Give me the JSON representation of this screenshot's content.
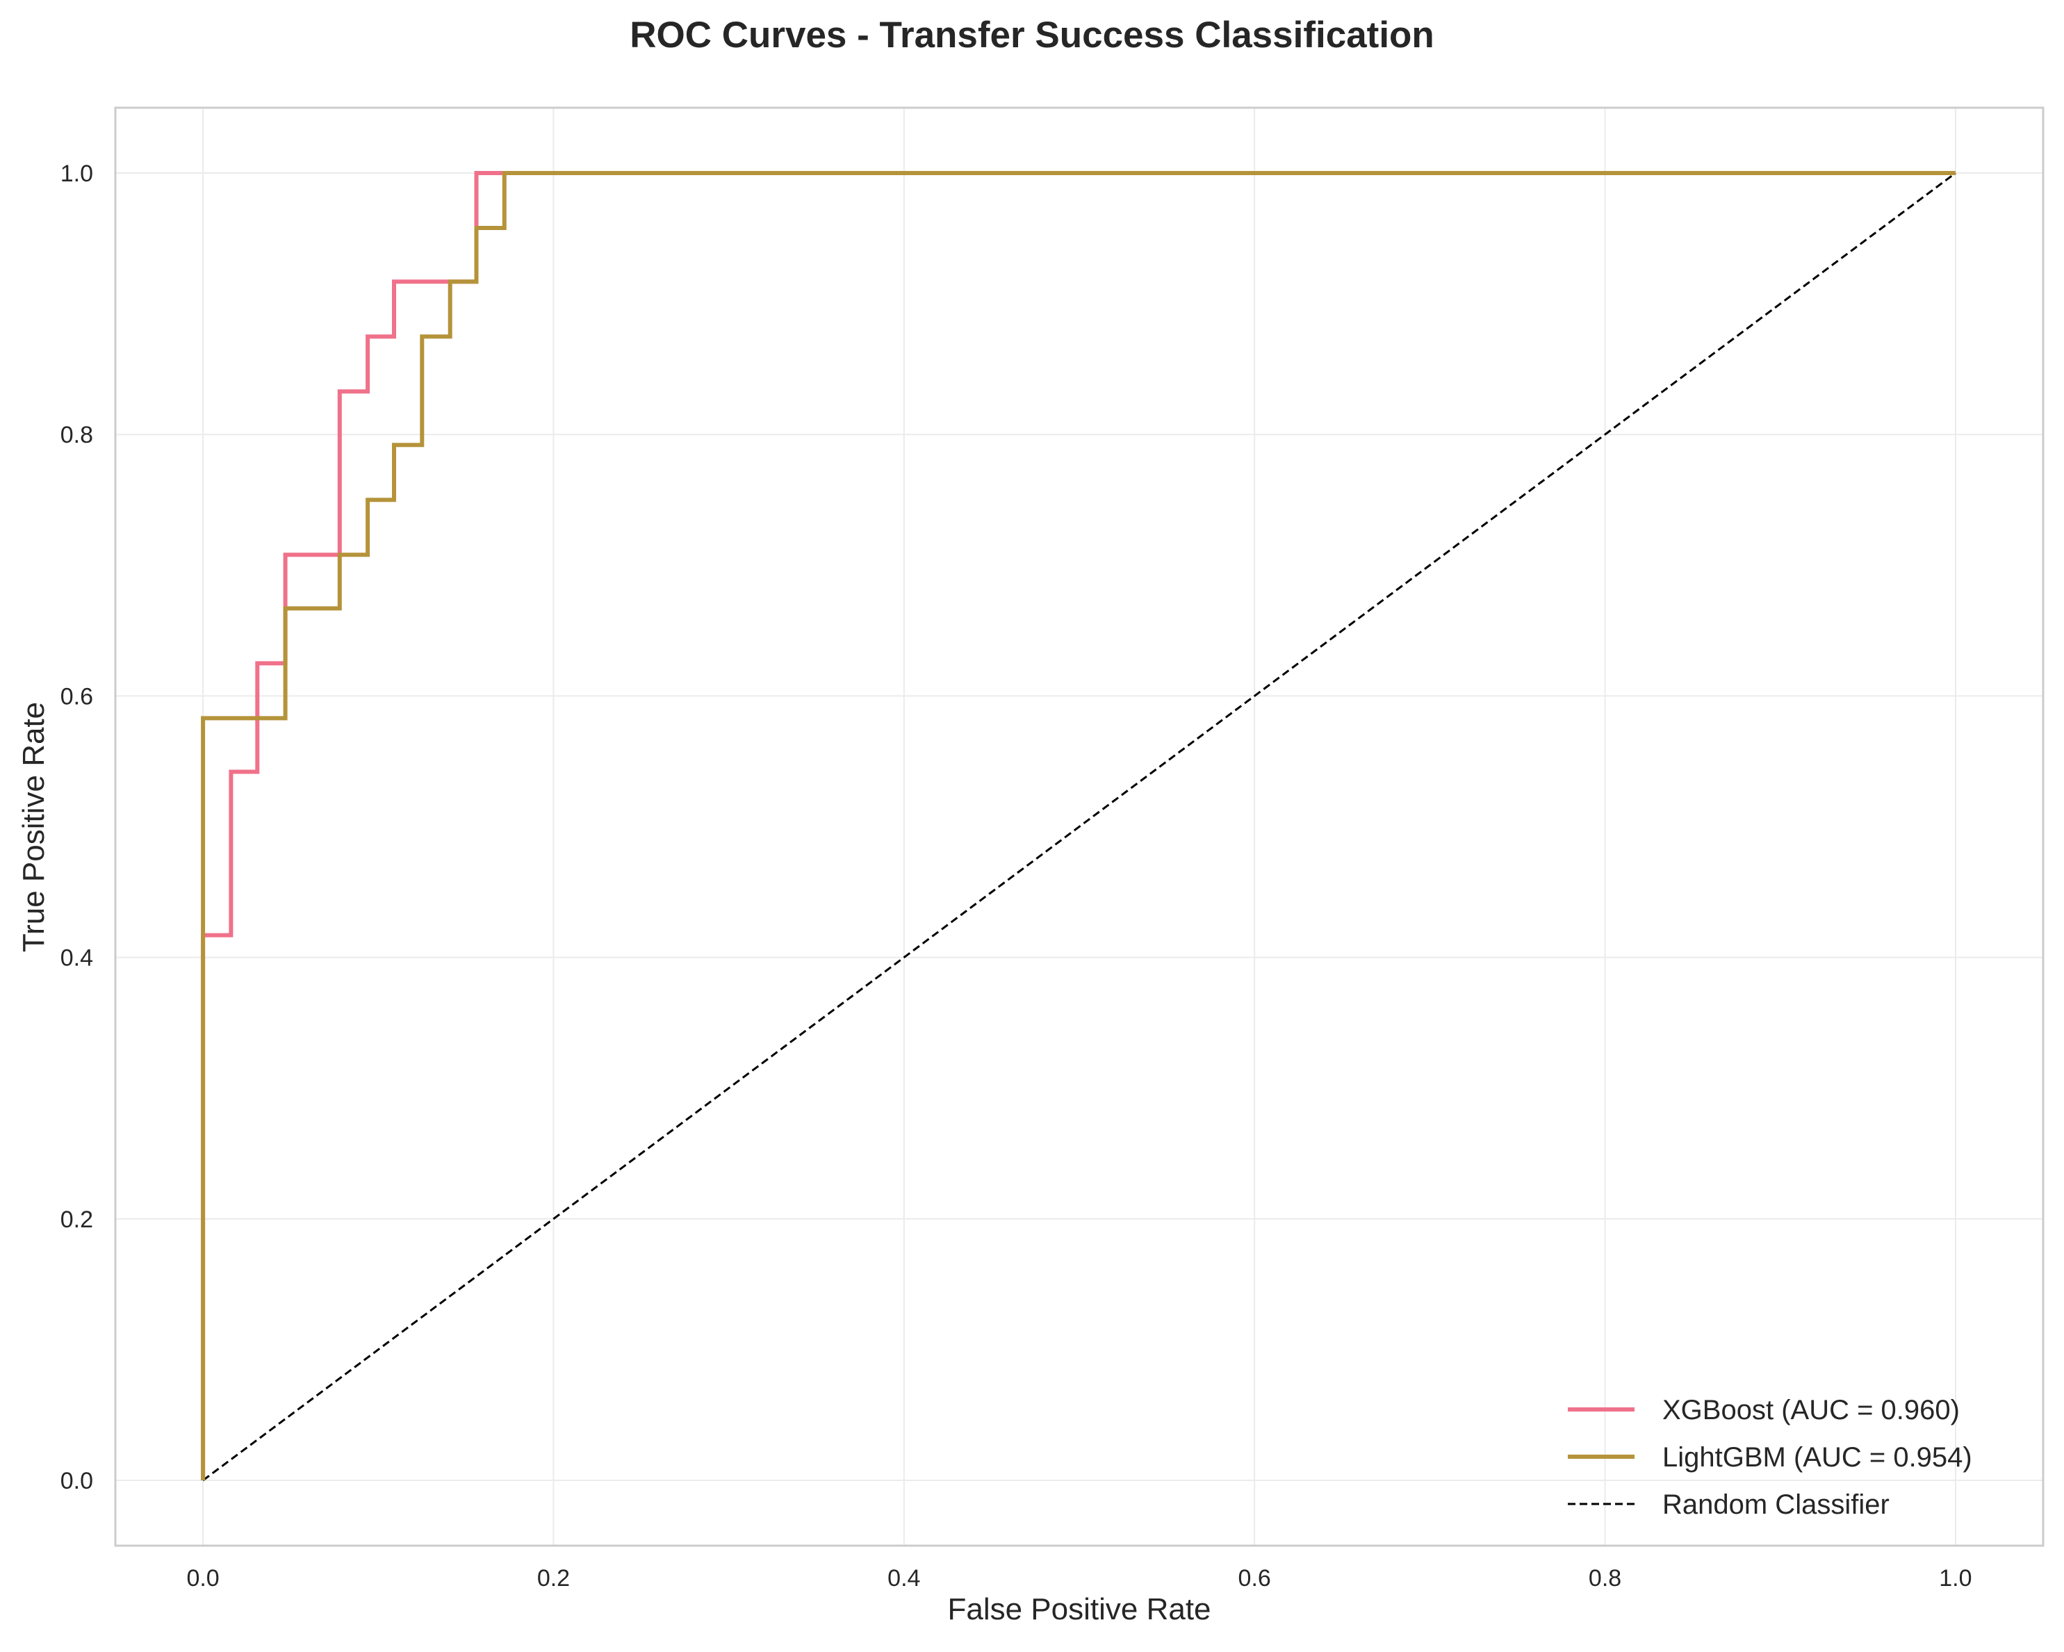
{
  "chart_data": {
    "type": "line",
    "title": "ROC Curves - Transfer Success Classification",
    "xlabel": "False Positive Rate",
    "ylabel": "True Positive Rate",
    "xlim": [
      -0.05,
      1.05
    ],
    "ylim": [
      -0.05,
      1.05
    ],
    "xticks": [
      0.0,
      0.2,
      0.4,
      0.6,
      0.8,
      1.0
    ],
    "yticks": [
      0.0,
      0.2,
      0.4,
      0.6,
      0.8,
      1.0
    ],
    "xtick_labels": [
      "0.0",
      "0.2",
      "0.4",
      "0.6",
      "0.8",
      "1.0"
    ],
    "ytick_labels": [
      "0.0",
      "0.2",
      "0.4",
      "0.6",
      "0.8",
      "1.0"
    ],
    "grid": true,
    "legend_position": "lower-right",
    "series": [
      {
        "name": "XGBoost (AUC = 0.960)",
        "color": "#f0718a",
        "style": "solid",
        "x": [
          0.0,
          0.0,
          0.016,
          0.016,
          0.031,
          0.031,
          0.047,
          0.047,
          0.078,
          0.078,
          0.094,
          0.094,
          0.109,
          0.109,
          0.156,
          0.156,
          1.0
        ],
        "y": [
          0.0,
          0.417,
          0.417,
          0.542,
          0.542,
          0.625,
          0.625,
          0.708,
          0.708,
          0.833,
          0.833,
          0.875,
          0.875,
          0.917,
          0.917,
          1.0,
          1.0
        ]
      },
      {
        "name": "LightGBM (AUC = 0.954)",
        "color": "#b5933a",
        "style": "solid",
        "x": [
          0.0,
          0.0,
          0.047,
          0.047,
          0.078,
          0.078,
          0.094,
          0.094,
          0.109,
          0.109,
          0.125,
          0.125,
          0.141,
          0.141,
          0.156,
          0.156,
          0.172,
          0.172,
          1.0
        ],
        "y": [
          0.0,
          0.583,
          0.583,
          0.667,
          0.667,
          0.708,
          0.708,
          0.75,
          0.75,
          0.792,
          0.792,
          0.875,
          0.875,
          0.917,
          0.917,
          0.958,
          0.958,
          1.0,
          1.0
        ]
      },
      {
        "name": "Random Classifier",
        "color": "#000000",
        "style": "dashed",
        "x": [
          0.0,
          1.0
        ],
        "y": [
          0.0,
          1.0
        ]
      }
    ]
  }
}
